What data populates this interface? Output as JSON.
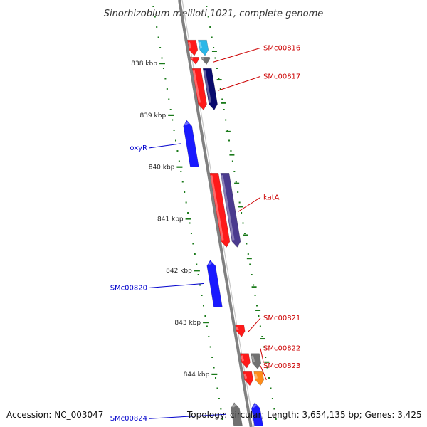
{
  "title": "Sinorhizobium meliloti 1021, complete genome",
  "footer": {
    "accession": "Accession: NC_003047",
    "topology": "Topology: circular; Length: 3,654,135 bp; Genes: 3,425"
  },
  "colors": {
    "backbone": "#808080",
    "tick": "#1a7a1a",
    "forward_label": "#cc0000",
    "reverse_label": "#0000cc"
  },
  "kbp_labels": [
    "838 kbp",
    "839 kbp",
    "840 kbp",
    "841 kbp",
    "842 kbp",
    "843 kbp",
    "844 kbp"
  ],
  "genes": [
    {
      "id": "g0",
      "label": "",
      "strand": "forward",
      "track": 1,
      "start": 837.55,
      "end": 837.85,
      "color": "#ff1a1a"
    },
    {
      "id": "g1",
      "label": "",
      "strand": "forward",
      "track": 2,
      "start": 837.55,
      "end": 837.85,
      "color": "#2ab7e8"
    },
    {
      "id": "g2",
      "label": "",
      "strand": "forward",
      "track": 1,
      "start": 837.88,
      "end": 838.02,
      "color": "#ff1a1a"
    },
    {
      "id": "g3",
      "label": "SMc00816",
      "strand": "forward",
      "track": 2,
      "start": 837.88,
      "end": 838.02,
      "color": "#707070"
    },
    {
      "id": "g4",
      "label": "",
      "strand": "forward",
      "track": 1,
      "start": 838.1,
      "end": 838.9,
      "color": "#ff1a1a"
    },
    {
      "id": "g5",
      "label": "SMc00817",
      "strand": "forward",
      "track": 2,
      "start": 838.1,
      "end": 838.9,
      "color": "#0a0a6e"
    },
    {
      "id": "g6",
      "label": "oxyR",
      "strand": "reverse",
      "track": 1,
      "start": 839.1,
      "end": 840.0,
      "color": "#1a1aff"
    },
    {
      "id": "g7",
      "label": "",
      "strand": "forward",
      "track": 1,
      "start": 840.12,
      "end": 841.55,
      "color": "#ff1a1a"
    },
    {
      "id": "g8",
      "label": "katA",
      "strand": "forward",
      "track": 2,
      "start": 840.12,
      "end": 841.55,
      "color": "#4b3b8f"
    },
    {
      "id": "g9",
      "label": "SMc00820",
      "strand": "reverse",
      "track": 1,
      "start": 841.8,
      "end": 842.7,
      "color": "#1a1aff"
    },
    {
      "id": "g10",
      "label": "SMc00821",
      "strand": "forward",
      "track": 1,
      "start": 843.05,
      "end": 843.28,
      "color": "#ff1a1a"
    },
    {
      "id": "g11",
      "label": "",
      "strand": "forward",
      "track": 1,
      "start": 843.6,
      "end": 843.88,
      "color": "#ff1a1a"
    },
    {
      "id": "g12",
      "label": "SMc00822",
      "strand": "forward",
      "track": 2,
      "start": 843.6,
      "end": 843.9,
      "color": "#707070"
    },
    {
      "id": "g13",
      "label": "",
      "strand": "forward",
      "track": 1,
      "start": 843.95,
      "end": 844.22,
      "color": "#ff1a1a"
    },
    {
      "id": "g14",
      "label": "SMc00823",
      "strand": "forward",
      "track": 2,
      "start": 843.95,
      "end": 844.22,
      "color": "#ff8c1a"
    },
    {
      "id": "g15",
      "label": "SMc00824",
      "strand": "reverse",
      "track": 1,
      "start": 844.55,
      "end": 845.0,
      "color": "#707070"
    },
    {
      "id": "g16",
      "label": "",
      "strand": "reverse",
      "track": 2,
      "start": 844.55,
      "end": 845.0,
      "color": "#1a1aff"
    }
  ]
}
